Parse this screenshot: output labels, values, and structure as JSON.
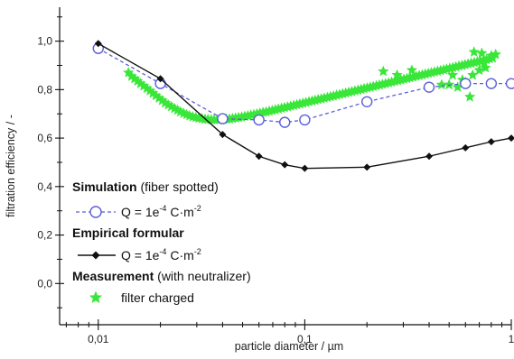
{
  "chart_data": {
    "type": "line",
    "xlabel": "particle diameter / µm",
    "ylabel": "filtration efficiency / -",
    "xscale": "log",
    "xlim": [
      0.0065,
      1.0
    ],
    "ylim": [
      -0.17,
      1.14
    ],
    "xticks": [
      {
        "value": 0.01,
        "label": "0,01"
      },
      {
        "value": 0.1,
        "label": "0,1"
      },
      {
        "value": 1,
        "label": "1"
      }
    ],
    "yticks": [
      {
        "value": 0.0,
        "label": "0,0"
      },
      {
        "value": 0.2,
        "label": "0,2"
      },
      {
        "value": 0.4,
        "label": "0,4"
      },
      {
        "value": 0.6,
        "label": "0,6"
      },
      {
        "value": 0.8,
        "label": "0,8"
      },
      {
        "value": 1.0,
        "label": "1,0"
      }
    ],
    "series": [
      {
        "name": "Simulation, Q = 1e-4 C·m-2",
        "color": "#5a5fd6",
        "marker": "open-circle",
        "line": "dashed",
        "x": [
          0.01,
          0.02,
          0.04,
          0.06,
          0.08,
          0.1,
          0.2,
          0.4,
          0.6,
          0.8,
          1.0
        ],
        "y": [
          0.97,
          0.825,
          0.68,
          0.675,
          0.665,
          0.675,
          0.75,
          0.81,
          0.825,
          0.825,
          0.825
        ]
      },
      {
        "name": "Empirical formular, Q = 1e-4 C·m-2",
        "color": "#111111",
        "marker": "diamond",
        "line": "solid",
        "x": [
          0.01,
          0.02,
          0.04,
          0.06,
          0.08,
          0.1,
          0.2,
          0.4,
          0.6,
          0.8,
          1.0
        ],
        "y": [
          0.99,
          0.845,
          0.615,
          0.525,
          0.49,
          0.475,
          0.48,
          0.525,
          0.56,
          0.585,
          0.6
        ]
      },
      {
        "name": "filter charged",
        "color": "#39e639",
        "marker": "star",
        "line": "none",
        "x": [
          0.014,
          0.0145,
          0.015,
          0.0155,
          0.016,
          0.0166,
          0.0172,
          0.0178,
          0.0184,
          0.019,
          0.0197,
          0.0204,
          0.0211,
          0.0218,
          0.0226,
          0.0234,
          0.0242,
          0.025,
          0.0259,
          0.0268,
          0.0277,
          0.0287,
          0.0297,
          0.0307,
          0.0318,
          0.0329,
          0.034,
          0.0352,
          0.0364,
          0.0377,
          0.039,
          0.0403,
          0.0417,
          0.0432,
          0.0447,
          0.0462,
          0.0478,
          0.0495,
          0.0512,
          0.053,
          0.0548,
          0.0567,
          0.0587,
          0.0607,
          0.0628,
          0.065,
          0.0673,
          0.0696,
          0.072,
          0.0745,
          0.0771,
          0.0798,
          0.0826,
          0.0854,
          0.0884,
          0.0915,
          0.0946,
          0.0979,
          0.1013,
          0.1048,
          0.1085,
          0.1122,
          0.1161,
          0.1202,
          0.1243,
          0.1287,
          0.1331,
          0.1377,
          0.1425,
          0.1475,
          0.1526,
          0.1579,
          0.1634,
          0.169,
          0.1749,
          0.181,
          0.1873,
          0.1938,
          0.2005,
          0.2074,
          0.2146,
          0.2221,
          0.2298,
          0.2378,
          0.246,
          0.2546,
          0.2634,
          0.2725,
          0.282,
          0.2918,
          0.3019,
          0.3124,
          0.3232,
          0.3344,
          0.346,
          0.358,
          0.3704,
          0.3833,
          0.3966,
          0.4103,
          0.4246,
          0.4393,
          0.4545,
          0.4703,
          0.4866,
          0.5035,
          0.5209,
          0.539,
          0.5577,
          0.5771,
          0.5971,
          0.6178,
          0.6393,
          0.6614,
          0.6844,
          0.7081,
          0.7327,
          0.7581,
          0.7844,
          0.8117,
          0.5,
          0.55,
          0.6,
          0.65,
          0.7,
          0.75,
          0.8,
          0.72
        ],
        "y": [
          0.87,
          0.855,
          0.845,
          0.835,
          0.825,
          0.815,
          0.805,
          0.795,
          0.785,
          0.775,
          0.765,
          0.755,
          0.745,
          0.737,
          0.73,
          0.722,
          0.715,
          0.708,
          0.702,
          0.697,
          0.692,
          0.688,
          0.685,
          0.682,
          0.68,
          0.678,
          0.677,
          0.676,
          0.676,
          0.676,
          0.676,
          0.677,
          0.678,
          0.679,
          0.681,
          0.683,
          0.685,
          0.687,
          0.69,
          0.692,
          0.695,
          0.697,
          0.7,
          0.703,
          0.706,
          0.708,
          0.711,
          0.714,
          0.717,
          0.72,
          0.723,
          0.726,
          0.729,
          0.732,
          0.735,
          0.738,
          0.741,
          0.744,
          0.747,
          0.75,
          0.753,
          0.756,
          0.759,
          0.762,
          0.765,
          0.768,
          0.771,
          0.774,
          0.777,
          0.78,
          0.783,
          0.786,
          0.789,
          0.792,
          0.795,
          0.798,
          0.801,
          0.804,
          0.807,
          0.81,
          0.813,
          0.816,
          0.819,
          0.822,
          0.825,
          0.828,
          0.831,
          0.834,
          0.837,
          0.84,
          0.843,
          0.846,
          0.849,
          0.852,
          0.855,
          0.858,
          0.861,
          0.864,
          0.867,
          0.87,
          0.873,
          0.876,
          0.879,
          0.882,
          0.885,
          0.888,
          0.891,
          0.894,
          0.897,
          0.9,
          0.903,
          0.906,
          0.909,
          0.912,
          0.915,
          0.918,
          0.921,
          0.924,
          0.927,
          0.93,
          0.82,
          0.81,
          0.83,
          0.86,
          0.88,
          0.89,
          0.94,
          0.95
        ],
        "extra_points": [
          {
            "x": 0.24,
            "y": 0.875
          },
          {
            "x": 0.28,
            "y": 0.86
          },
          {
            "x": 0.33,
            "y": 0.88
          },
          {
            "x": 0.46,
            "y": 0.82
          },
          {
            "x": 0.52,
            "y": 0.86
          },
          {
            "x": 0.58,
            "y": 0.84
          },
          {
            "x": 0.63,
            "y": 0.77
          },
          {
            "x": 0.66,
            "y": 0.955
          },
          {
            "x": 0.74,
            "y": 0.91
          },
          {
            "x": 0.84,
            "y": 0.945
          }
        ]
      }
    ],
    "legend": {
      "placement": "bottom-left",
      "groups": [
        {
          "title_bold": "Simulation",
          "title_rest": " (fiber spotted)",
          "entry_text": "Q = 1e",
          "entry_sup": "-4",
          "entry_tail": " C·m",
          "entry_sup2": "-2"
        },
        {
          "title_bold": "Empirical formular",
          "title_rest": "",
          "entry_text": "Q = 1e",
          "entry_sup": "-4",
          "entry_tail": " C·m",
          "entry_sup2": "-2"
        },
        {
          "title_bold": "Measurement",
          "title_rest": " (with neutralizer)",
          "entry_text": "filter charged",
          "entry_sup": "",
          "entry_tail": "",
          "entry_sup2": ""
        }
      ]
    },
    "grid": false
  }
}
